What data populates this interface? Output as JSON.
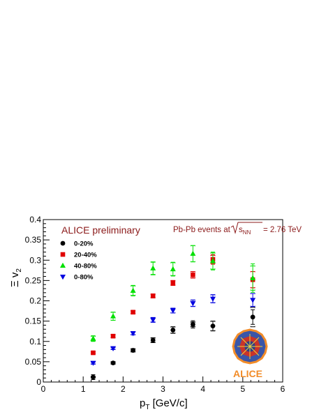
{
  "chart_data": {
    "type": "scatter",
    "title": "",
    "xlabel": "p",
    "xlabel_sub": "T",
    "xlabel_unit": " [GeV/c]",
    "ylabel": "Ξ v",
    "ylabel_sub": "2",
    "xlim": [
      0,
      6
    ],
    "ylim": [
      0,
      0.4
    ],
    "x_ticks": [
      "0",
      "1",
      "2",
      "3",
      "4",
      "5",
      "6"
    ],
    "y_ticks": [
      "0",
      "0.05",
      "0.1",
      "0.15",
      "0.2",
      "0.25",
      "0.3",
      "0.35",
      "0.4"
    ],
    "grid": false,
    "legend_position": "top-left",
    "annotations": {
      "preliminary": "ALICE preliminary",
      "events_prefix": "Pb-Pb events at ",
      "sqrt_s": "s",
      "sqrt_s_sub": "NN",
      "events_suffix": " = 2.76 TeV",
      "logo": "ALICE"
    },
    "series": [
      {
        "name": "0-20%",
        "color": "#000000",
        "marker": "circle",
        "x": [
          1.25,
          1.75,
          2.25,
          2.75,
          3.25,
          3.75,
          4.25,
          5.25
        ],
        "y": [
          0.012,
          0.047,
          0.078,
          0.103,
          0.128,
          0.142,
          0.138,
          0.16
        ],
        "err": [
          0.006,
          0.003,
          0.004,
          0.006,
          0.008,
          0.009,
          0.012,
          0.018
        ],
        "sys": [
          0.002,
          0.003,
          0.004,
          0.006,
          0.008,
          0.006,
          0.012,
          0.024
        ]
      },
      {
        "name": "20-40%",
        "color": "#e00000",
        "marker": "square",
        "x": [
          1.25,
          1.75,
          2.25,
          2.75,
          3.25,
          3.75,
          4.25,
          5.25
        ],
        "y": [
          0.072,
          0.113,
          0.172,
          0.212,
          0.244,
          0.264,
          0.302,
          0.252
        ],
        "err": [
          0.004,
          0.003,
          0.004,
          0.005,
          0.006,
          0.008,
          0.012,
          0.02
        ],
        "sys": [
          0.003,
          0.004,
          0.004,
          0.005,
          0.006,
          0.008,
          0.01,
          0.02
        ]
      },
      {
        "name": "40-80%",
        "color": "#00e000",
        "marker": "triangle-up",
        "x": [
          1.25,
          1.75,
          2.25,
          2.75,
          3.25,
          3.75,
          4.25,
          5.25
        ],
        "y": [
          0.107,
          0.162,
          0.225,
          0.28,
          0.278,
          0.316,
          0.298,
          0.256
        ],
        "err": [
          0.007,
          0.01,
          0.013,
          0.015,
          0.017,
          0.02,
          0.022,
          0.035
        ],
        "sys": [
          0.006,
          0.01,
          0.012,
          0.016,
          0.016,
          0.02,
          0.02,
          0.03
        ]
      },
      {
        "name": "0-80%",
        "color": "#0000e0",
        "marker": "triangle-down",
        "x": [
          1.25,
          1.75,
          2.25,
          2.75,
          3.25,
          3.75,
          4.25,
          5.25
        ],
        "y": [
          0.047,
          0.083,
          0.12,
          0.153,
          0.176,
          0.194,
          0.205,
          0.202
        ],
        "err": [
          0.003,
          0.003,
          0.004,
          0.005,
          0.006,
          0.008,
          0.01,
          0.016
        ],
        "sys": [
          0.003,
          0.003,
          0.004,
          0.006,
          0.006,
          0.008,
          0.01,
          0.016
        ]
      }
    ]
  }
}
